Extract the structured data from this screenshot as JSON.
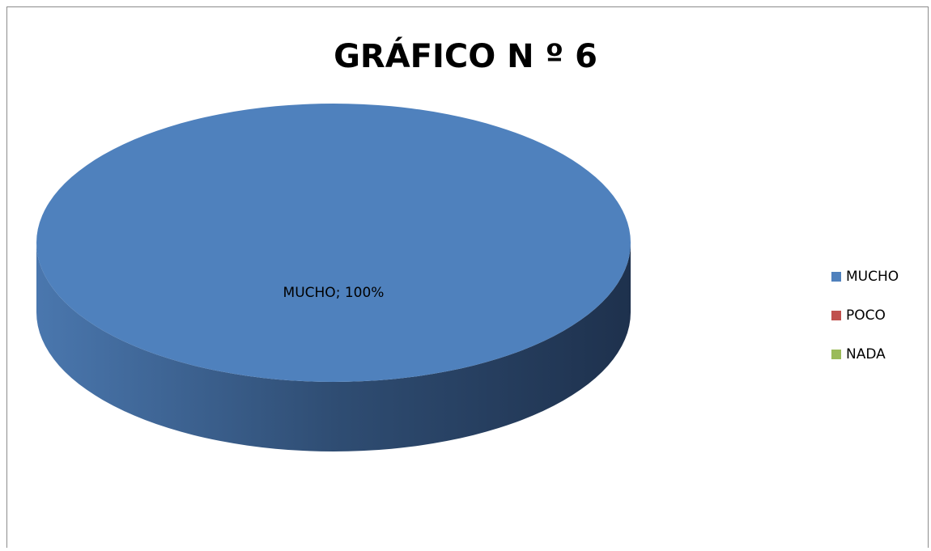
{
  "chart_data": {
    "type": "pie",
    "title": "GRÁFICO N º 6",
    "categories": [
      "MUCHO",
      "POCO",
      "NADA"
    ],
    "values": [
      100,
      0,
      0
    ],
    "value_labels": [
      "MUCHO; 100%",
      null,
      null
    ],
    "colors": [
      "#4f81bd",
      "#c0504d",
      "#9bbb59"
    ],
    "legend": "right"
  }
}
